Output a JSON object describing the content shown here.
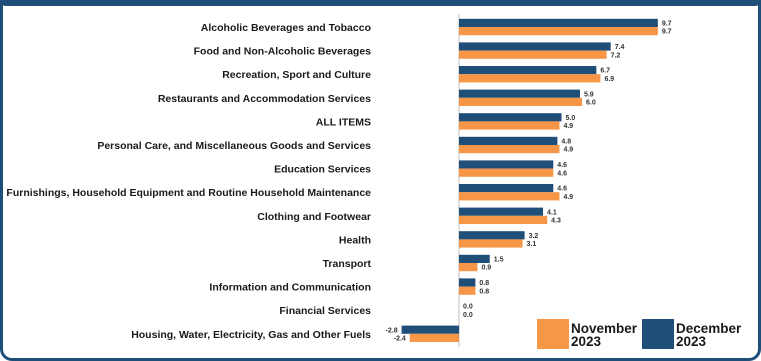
{
  "chart_data": {
    "type": "bar",
    "orientation": "horizontal",
    "title": "",
    "xlabel": "",
    "ylabel": "",
    "grid": false,
    "legend_position": "bottom-right",
    "categories": [
      "Alcoholic Beverages and Tobacco",
      "Food and Non-Alcoholic Beverages",
      "Recreation, Sport and Culture",
      "Restaurants and Accommodation Services",
      "ALL ITEMS",
      "Personal Care, and Miscellaneous Goods and Services",
      "Education Services",
      "Furnishings, Household Equipment and Routine Household Maintenance",
      "Clothing and Footwear",
      "Health",
      "Transport",
      "Information and Communication",
      "Financial Services",
      "Housing, Water, Electricity, Gas and Other Fuels"
    ],
    "series": [
      {
        "name": "December 2023",
        "legend_line1": "December",
        "legend_line2": "2023",
        "color": "#1f4e79",
        "values": [
          9.7,
          7.4,
          6.7,
          5.9,
          5.0,
          4.8,
          4.6,
          4.6,
          4.1,
          3.2,
          1.5,
          0.8,
          0.0,
          -2.8
        ],
        "labels": [
          "9.7",
          "7.4",
          "6.7",
          "5.9",
          "5.0",
          "4.8",
          "4.6",
          "4.6",
          "4.1",
          "3.2",
          "1.5",
          "0.8",
          "0.0",
          "-2.8"
        ]
      },
      {
        "name": "November 2023",
        "legend_line1": "November",
        "legend_line2": "2023",
        "color": "#f79646",
        "values": [
          9.7,
          7.2,
          6.9,
          6.0,
          4.9,
          4.9,
          4.6,
          4.9,
          4.3,
          3.1,
          0.9,
          0.8,
          0.0,
          -2.4
        ],
        "labels": [
          "9.7",
          "7.2",
          "6.9",
          "6.0",
          "4.9",
          "4.9",
          "4.6",
          "4.9",
          "4.3",
          "3.1",
          "0.9",
          "0.8",
          "0.0",
          "-2.4"
        ]
      }
    ],
    "xlim": [
      -3.0,
      10.2
    ]
  },
  "colors": {
    "frame": "#1f4e79",
    "axis": "#bfbfbf"
  }
}
